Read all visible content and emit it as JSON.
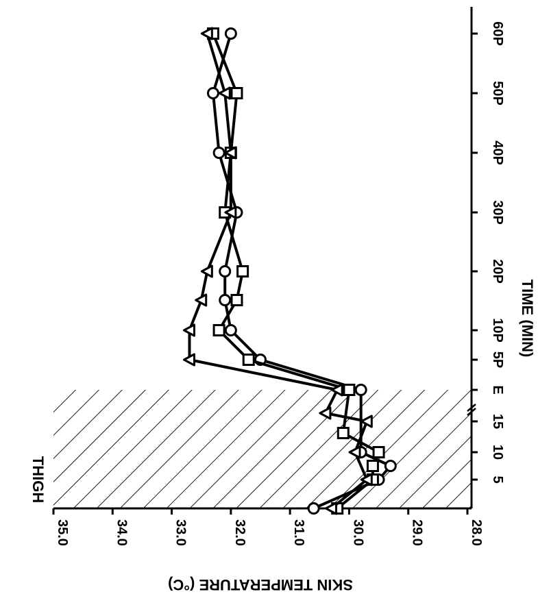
{
  "chart_data": {
    "type": "line",
    "title": "THIGH",
    "xlabel": "TIME (MIN)",
    "ylabel": "SKIN TEMPERATURE (°C)",
    "ylim": [
      28.0,
      35.0
    ],
    "y_ticks": [
      "35.0",
      "34.0",
      "33.0",
      "32.0",
      "31.0",
      "30.0",
      "29.0",
      "28.0"
    ],
    "x_ticks": [
      "5",
      "10",
      "15",
      "E",
      "5P",
      "10P",
      "20P",
      "30P",
      "40P",
      "50P",
      "60P"
    ],
    "shaded_region": "exercise period (0 to E)",
    "axis_break_between": [
      "15",
      "E"
    ],
    "series": [
      {
        "marker": "circle",
        "points": [
          {
            "x": "0",
            "y": 30.6
          },
          {
            "x": "5",
            "y": 29.5
          },
          {
            "x": "7.5",
            "y": 29.3
          },
          {
            "x": "10",
            "y": 29.8
          },
          {
            "x": "E",
            "y": 29.8
          },
          {
            "x": "5P",
            "y": 31.5
          },
          {
            "x": "10P",
            "y": 32.0
          },
          {
            "x": "15P",
            "y": 32.1
          },
          {
            "x": "20P",
            "y": 32.1
          },
          {
            "x": "30P",
            "y": 31.9
          },
          {
            "x": "40P",
            "y": 32.2
          },
          {
            "x": "50P",
            "y": 32.3
          },
          {
            "x": "60P",
            "y": 32.0
          }
        ]
      },
      {
        "marker": "square",
        "points": [
          {
            "x": "0",
            "y": 30.2
          },
          {
            "x": "5",
            "y": 29.6
          },
          {
            "x": "7.5",
            "y": 29.6
          },
          {
            "x": "10",
            "y": 29.5
          },
          {
            "x": "12.5",
            "y": 30.1
          },
          {
            "x": "E",
            "y": 30.0
          },
          {
            "x": "5P",
            "y": 31.7
          },
          {
            "x": "10P",
            "y": 32.2
          },
          {
            "x": "15P",
            "y": 31.9
          },
          {
            "x": "20P",
            "y": 31.8
          },
          {
            "x": "30P",
            "y": 32.1
          },
          {
            "x": "40P",
            "y": 32.0
          },
          {
            "x": "50P",
            "y": 31.9
          },
          {
            "x": "60P",
            "y": 32.3
          }
        ]
      },
      {
        "marker": "triangle",
        "points": [
          {
            "x": "0",
            "y": 30.3
          },
          {
            "x": "5",
            "y": 29.7
          },
          {
            "x": "10",
            "y": 29.9
          },
          {
            "x": "15",
            "y": 29.7
          },
          {
            "x": "16",
            "y": 30.4
          },
          {
            "x": "E",
            "y": 30.2
          },
          {
            "x": "5P",
            "y": 32.7
          },
          {
            "x": "10P",
            "y": 32.7
          },
          {
            "x": "15P",
            "y": 32.5
          },
          {
            "x": "20P",
            "y": 32.4
          },
          {
            "x": "30P",
            "y": 32.0
          },
          {
            "x": "40P",
            "y": 32.0
          },
          {
            "x": "50P",
            "y": 32.1
          },
          {
            "x": "60P",
            "y": 32.4
          }
        ]
      }
    ]
  }
}
